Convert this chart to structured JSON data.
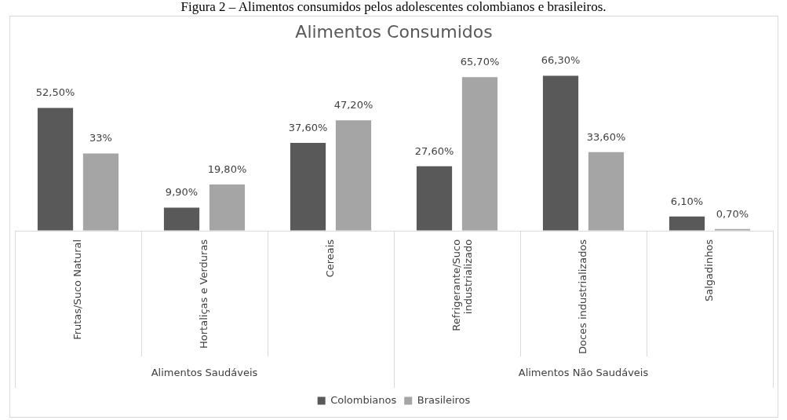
{
  "chart_data": {
    "type": "bar",
    "title": "Alimentos Consumidos",
    "categories": [
      "Frutas/Suco Natural",
      "Hortaliças e Verduras",
      "Cereais",
      "Refrigerante/Suco industrializado",
      "Doces industrializados",
      "Salgadinhos"
    ],
    "series": [
      {
        "name": "Colombianos",
        "color": "#595959",
        "values": [
          52.5,
          9.9,
          37.6,
          27.6,
          66.3,
          6.1
        ],
        "value_labels": [
          "52,50%",
          "9,90%",
          "37,60%",
          "27,60%",
          "66,30%",
          "6,10%"
        ]
      },
      {
        "name": "Brasileiros",
        "color": "#a5a5a5",
        "values": [
          33,
          19.8,
          47.2,
          65.7,
          33.6,
          0.7
        ],
        "value_labels": [
          "33%",
          "19,80%",
          "47,20%",
          "65,70%",
          "33,60%",
          "0,70%"
        ]
      }
    ],
    "data_labels": true,
    "legend": "bottom",
    "annotations": [
      "Figura 2 – Alimentos consumidos pelos adolescentes colombianos e brasileiros.",
      "Alimentos Saudáveis",
      "Alimentos Não Saudáveis"
    ]
  }
}
